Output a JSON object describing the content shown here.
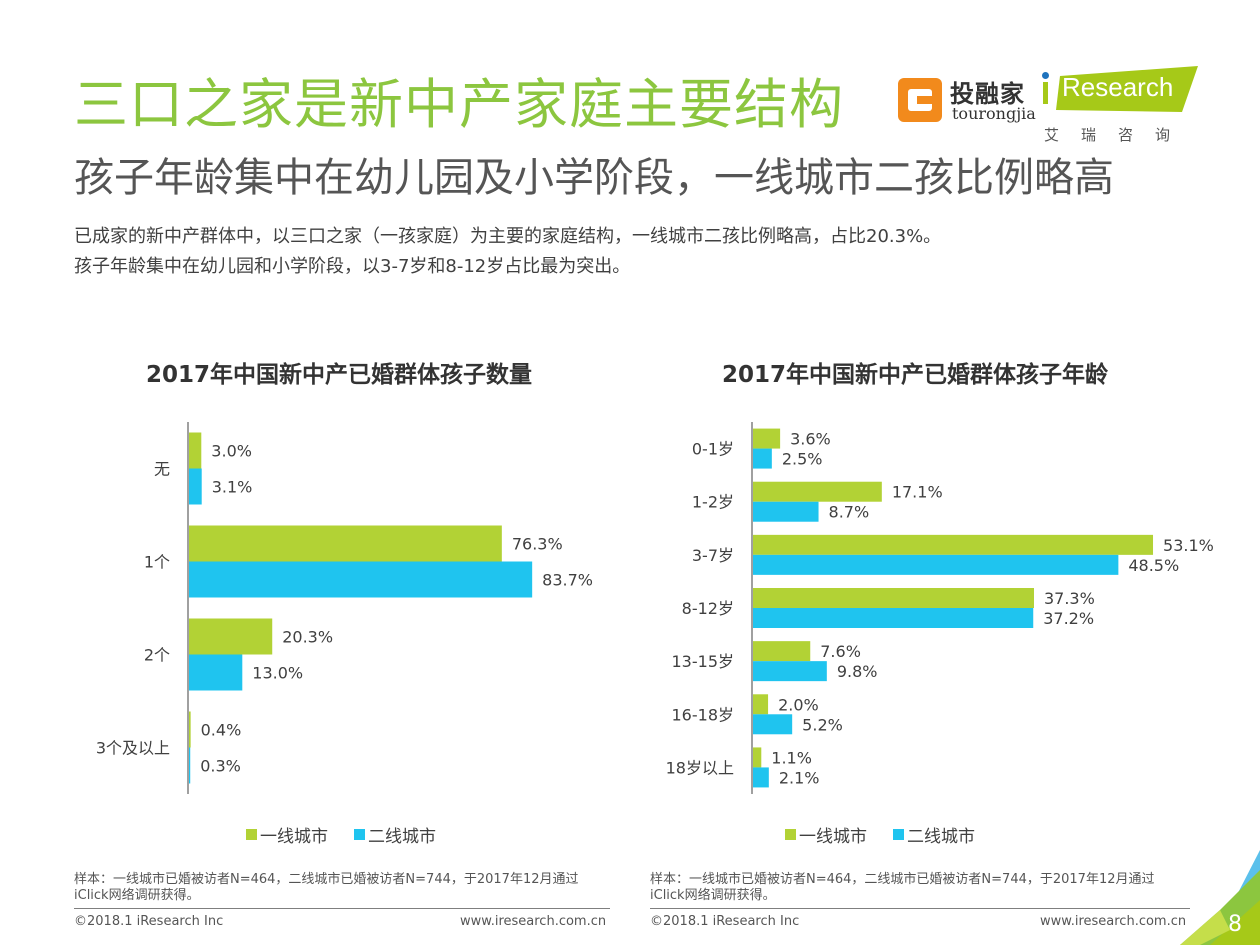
{
  "header": {
    "title": "三口之家是新中产家庭主要结构",
    "subtitle": "孩子年龄集中在幼儿园及小学阶段，一线城市二孩比例略高",
    "description": [
      "已成家的新中产群体中，以三口之家（一孩家庭）为主要的家庭结构，一线城市二孩比例略高，占比20.3%。",
      "孩子年龄集中在幼儿园和小学阶段，以3-7岁和8-12岁占比最为突出。"
    ]
  },
  "logos": {
    "tourongjia_cn": "投融家",
    "tourongjia_en": "tourongjia",
    "iresearch": "Research",
    "iresearch_cn": "艾瑞咨询"
  },
  "colors": {
    "title_green": "#8cc63f",
    "series1": "#b2d235",
    "series2": "#1fc4ef"
  },
  "chart_data": [
    {
      "type": "bar",
      "orientation": "horizontal",
      "title": "2017年中国新中产已婚群体孩子数量",
      "categories": [
        "无",
        "1个",
        "2个",
        "3个及以上"
      ],
      "series": [
        {
          "name": "一线城市",
          "values": [
            3.0,
            76.3,
            20.3,
            0.4
          ]
        },
        {
          "name": "二线城市",
          "values": [
            3.1,
            83.7,
            13.0,
            0.3
          ]
        }
      ],
      "labels": [
        [
          "3.0%",
          "76.3%",
          "20.3%",
          "0.4%"
        ],
        [
          "3.1%",
          "83.7%",
          "13.0%",
          "0.3%"
        ]
      ],
      "unit": "%",
      "xlim": [
        0,
        100
      ],
      "grid": false,
      "legend": "bottom"
    },
    {
      "type": "bar",
      "orientation": "horizontal",
      "title": "2017年中国新中产已婚群体孩子年龄",
      "categories": [
        "0-1岁",
        "1-2岁",
        "3-7岁",
        "8-12岁",
        "13-15岁",
        "16-18岁",
        "18岁以上"
      ],
      "series": [
        {
          "name": "一线城市",
          "values": [
            3.6,
            17.1,
            53.1,
            37.3,
            7.6,
            2.0,
            1.1
          ]
        },
        {
          "name": "二线城市",
          "values": [
            2.5,
            8.7,
            48.5,
            37.2,
            9.8,
            5.2,
            2.1
          ]
        }
      ],
      "labels": [
        [
          "3.6%",
          "17.1%",
          "53.1%",
          "37.3%",
          "7.6%",
          "2.0%",
          "1.1%"
        ],
        [
          "2.5%",
          "8.7%",
          "48.5%",
          "37.2%",
          "9.8%",
          "5.2%",
          "2.1%"
        ]
      ],
      "unit": "%",
      "xlim": [
        0,
        60
      ],
      "grid": false,
      "legend": "bottom"
    }
  ],
  "footer": {
    "note_left": [
      "样本：一线城市已婚被访者N=464，二线城市已婚被访者N=744，于2017年12月通过",
      "iClick网络调研获得。"
    ],
    "note_right": [
      "样本：一线城市已婚被访者N=464，二线城市已婚被访者N=744，于2017年12月通过",
      "iClick网络调研获得。"
    ],
    "copyright": "©2018.1 iResearch Inc",
    "website": "www.iresearch.com.cn",
    "page_number": "8"
  }
}
